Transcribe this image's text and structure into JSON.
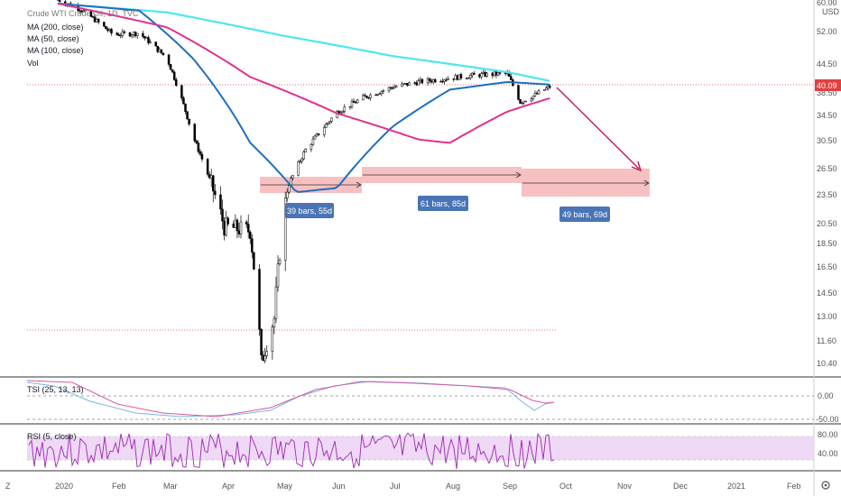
{
  "legend": {
    "main_title": "Crude WTI Crude Oil, 1D, TVC",
    "ma_200": "MA (200, close)",
    "ma_50": "MA (50, close)",
    "ma_100": "MA (100, close)",
    "vol": "Vol"
  },
  "price_axis": {
    "unit": "USD",
    "ticks": [
      "60.00",
      "52.00",
      "44.50",
      "38.50",
      "34.50",
      "30.50",
      "26.50",
      "23.50",
      "20.50",
      "18.50",
      "16.50",
      "14.50",
      "13.00",
      "11.60",
      "10.40"
    ],
    "last_price": "40.09"
  },
  "time_axis": {
    "ticks": [
      "2020",
      "Feb",
      "Mar",
      "Apr",
      "May",
      "Jun",
      "Jul",
      "Aug",
      "Sep",
      "Oct",
      "Nov",
      "Dec",
      "2021",
      "Feb"
    ]
  },
  "measures": [
    {
      "label": "39 bars, 55d"
    },
    {
      "label": "61 bars, 85d"
    },
    {
      "label": "49 bars, 69d"
    }
  ],
  "tsi_panel": {
    "label": "TSI (25, 13, 13)",
    "ticks": [
      "0.00",
      "-50.00"
    ]
  },
  "rsi_panel": {
    "label": "RSI (5, close)",
    "ticks": [
      "80.00",
      "40.00"
    ]
  },
  "colors": {
    "candle": "#000000",
    "ma200": "#4ee6f0",
    "ma50": "#1e6fbf",
    "ma100": "#e2308f",
    "measure_fill": "#f7b6b6",
    "arrow": "#c2185b",
    "tsi_main": "#7fb3e6",
    "tsi_signal": "#d65aa0",
    "rsi_line": "#9c27b0",
    "rsi_band": "#efd9f7"
  },
  "chart_data": {
    "type": "line",
    "title": "Crude WTI Crude Oil, 1D, TVC",
    "x_range": [
      "2020-01",
      "2021-02"
    ],
    "y_range": [
      10.4,
      60.0
    ],
    "y_scale": "log",
    "series": [
      {
        "name": "Crude WTI Crude Oil, 1D, TVC",
        "points": [
          [
            "2020-01-02",
            61.2
          ],
          [
            "2020-01-15",
            58.2
          ],
          [
            "2020-02-01",
            51.6
          ],
          [
            "2020-02-15",
            52.0
          ],
          [
            "2020-03-01",
            46.0
          ],
          [
            "2020-03-15",
            31.5
          ],
          [
            "2020-04-01",
            20.3
          ],
          [
            "2020-04-15",
            19.9
          ],
          [
            "2020-04-21",
            10.5
          ],
          [
            "2020-04-28",
            13.0
          ],
          [
            "2020-05-05",
            24.5
          ],
          [
            "2020-05-15",
            29.5
          ],
          [
            "2020-06-01",
            35.4
          ],
          [
            "2020-06-15",
            38.0
          ],
          [
            "2020-07-01",
            40.0
          ],
          [
            "2020-07-15",
            41.0
          ],
          [
            "2020-08-01",
            41.8
          ],
          [
            "2020-08-15",
            42.4
          ],
          [
            "2020-09-01",
            42.7
          ],
          [
            "2020-09-08",
            37.2
          ],
          [
            "2020-09-15",
            38.3
          ],
          [
            "2020-09-24",
            40.09
          ]
        ]
      },
      {
        "name": "MA (200, close)",
        "points": [
          [
            "2020-01-02",
            60.0
          ],
          [
            "2020-03-01",
            57.5
          ],
          [
            "2020-05-01",
            51.5
          ],
          [
            "2020-07-01",
            46.5
          ],
          [
            "2020-09-01",
            43.0
          ],
          [
            "2020-09-24",
            41.2
          ]
        ]
      },
      {
        "name": "MA (50, close)",
        "points": [
          [
            "2020-01-02",
            60.0
          ],
          [
            "2020-02-15",
            58.0
          ],
          [
            "2020-03-15",
            46.0
          ],
          [
            "2020-04-15",
            30.5
          ],
          [
            "2020-05-10",
            24.0
          ],
          [
            "2020-06-01",
            24.5
          ],
          [
            "2020-07-01",
            33.0
          ],
          [
            "2020-08-01",
            39.5
          ],
          [
            "2020-09-01",
            41.0
          ],
          [
            "2020-09-24",
            40.5
          ]
        ]
      },
      {
        "name": "MA (100, close)",
        "points": [
          [
            "2020-01-02",
            60.0
          ],
          [
            "2020-03-01",
            53.5
          ],
          [
            "2020-04-15",
            42.0
          ],
          [
            "2020-06-01",
            35.2
          ],
          [
            "2020-07-15",
            31.0
          ],
          [
            "2020-08-01",
            30.5
          ],
          [
            "2020-09-01",
            35.5
          ],
          [
            "2020-09-24",
            37.9
          ]
        ]
      }
    ],
    "annotations": [
      "39 bars, 55d",
      "61 bars, 85d",
      "49 bars, 69d"
    ]
  }
}
